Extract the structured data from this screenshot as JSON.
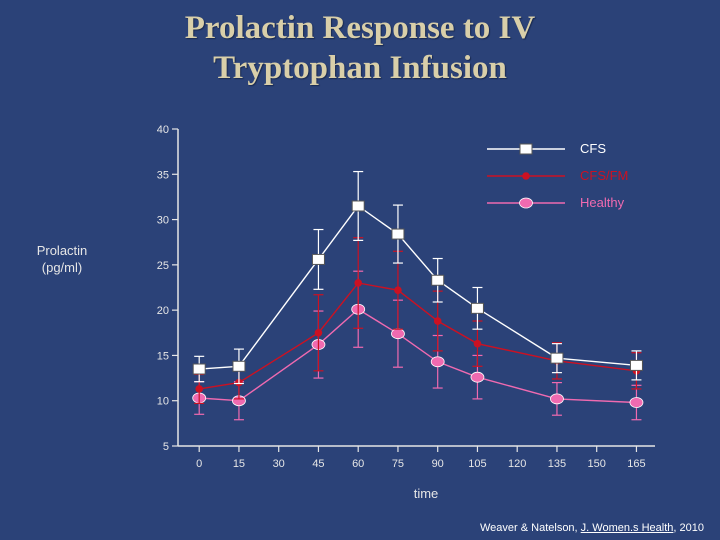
{
  "slide": {
    "title_line1": "Prolactin Response to IV",
    "title_line2": "Tryptophan Infusion",
    "citation_authors": "Weaver & Natelson, ",
    "citation_journal": "J. Women.s Health",
    "citation_tail": ", 2010"
  },
  "colors": {
    "background": "#2b4278",
    "CFS": "#ffffff",
    "CFS/FM": "#cc1122",
    "Healthy": "#f06ab0",
    "axis": "#e6e6e6"
  },
  "chart_data": {
    "type": "line",
    "title": "Prolactin Response to IV Tryptophan Infusion",
    "ylabel_line1": "Prolactin",
    "ylabel_line2": "(pg/ml)",
    "xlabel": "time",
    "x_ticks": [
      0,
      15,
      30,
      45,
      60,
      75,
      90,
      105,
      120,
      135,
      150,
      165
    ],
    "y_ticks": [
      5,
      10,
      15,
      20,
      25,
      30,
      35,
      40
    ],
    "xlim": [
      -8,
      172
    ],
    "ylim": [
      5,
      40
    ],
    "legend_position": "top-right",
    "series": [
      {
        "name": "CFS",
        "marker": "square",
        "x": [
          0,
          15,
          45,
          60,
          75,
          90,
          105,
          135,
          165
        ],
        "y": [
          13.5,
          13.8,
          25.6,
          31.5,
          28.4,
          23.3,
          20.2,
          14.7,
          13.9
        ],
        "err": [
          1.4,
          1.9,
          3.3,
          3.8,
          3.2,
          2.4,
          2.3,
          1.6,
          1.6
        ]
      },
      {
        "name": "CFS/FM",
        "marker": "dot",
        "x": [
          0,
          15,
          45,
          60,
          75,
          90,
          105,
          135,
          165
        ],
        "y": [
          11.3,
          12.0,
          17.5,
          23.0,
          22.2,
          18.8,
          16.3,
          14.4,
          13.3
        ],
        "err": [
          1.6,
          1.8,
          4.2,
          5.0,
          4.3,
          3.3,
          2.5,
          2.0,
          2.0
        ]
      },
      {
        "name": "Healthy",
        "marker": "ellipse",
        "x": [
          0,
          15,
          45,
          60,
          75,
          90,
          105,
          135,
          165
        ],
        "y": [
          10.3,
          10.0,
          16.2,
          20.1,
          17.4,
          14.3,
          12.6,
          10.2,
          9.8
        ],
        "err": [
          1.8,
          2.1,
          3.7,
          4.2,
          3.7,
          2.9,
          2.4,
          1.8,
          1.9
        ]
      }
    ]
  }
}
